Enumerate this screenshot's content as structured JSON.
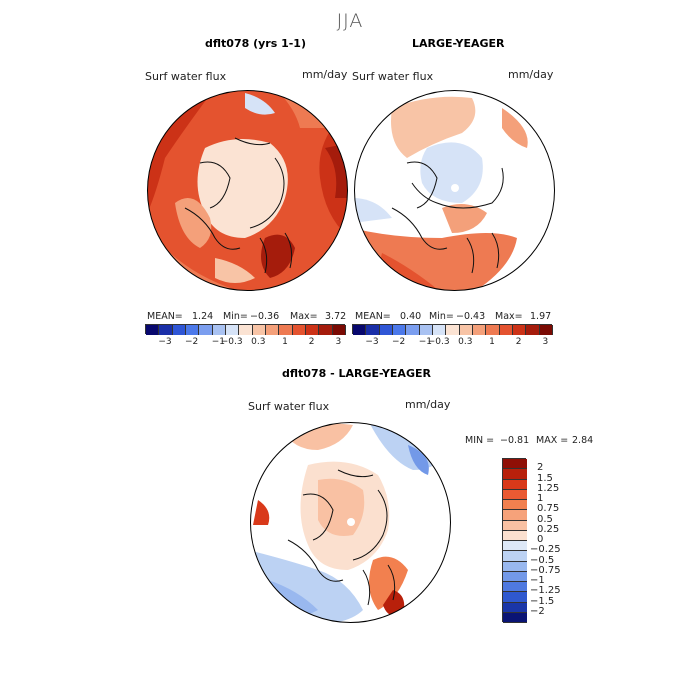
{
  "season": "JJA",
  "variable": "Surf water flux",
  "units": "mm/day",
  "panels": {
    "left": {
      "title": "dflt078 (yrs 1-1)",
      "mean": "1.24",
      "min": "−0.36",
      "max": "3.72"
    },
    "right": {
      "title": "LARGE-YEAGER",
      "mean": "0.40",
      "min": "−0.43",
      "max": "1.97"
    },
    "diff": {
      "title": "dflt078 - LARGE-YEAGER",
      "min": "−0.81",
      "max": "2.84"
    }
  },
  "stat_labels": {
    "mean": "MEAN=",
    "min": "Min=",
    "max": "Max=",
    "min_upper": "MIN =",
    "max_upper": "MAX ="
  },
  "colorbar_top": {
    "ticks": [
      "−3",
      "−2",
      "−1",
      "−0.3",
      "0.3",
      "1",
      "2",
      "3"
    ],
    "colors": [
      "#08086e",
      "#1a2fa8",
      "#2f56d6",
      "#4c79ea",
      "#7b9eef",
      "#a9c2f2",
      "#d6e3f7",
      "#fbe3d3",
      "#f8c4a6",
      "#f4a07a",
      "#ee7a52",
      "#e4532f",
      "#cc3217",
      "#a51c0c",
      "#7a0a03"
    ]
  },
  "colorbar_diff": {
    "labels": [
      "2",
      "1.5",
      "1.25",
      "1",
      "0.75",
      "0.5",
      "0.25",
      "0",
      "−0.25",
      "−0.5",
      "−0.75",
      "−1",
      "−1.25",
      "−1.5",
      "−2"
    ],
    "colors": [
      "#8f0f06",
      "#b8200b",
      "#d9391a",
      "#ea5a33",
      "#f2804f",
      "#f6a27a",
      "#f9c1a3",
      "#fbe0cf",
      "#dde8f7",
      "#bcd2f3",
      "#99b8ef",
      "#7399e8",
      "#4f79e0",
      "#2f58cf",
      "#1a36a8",
      "#0a1474"
    ]
  }
}
